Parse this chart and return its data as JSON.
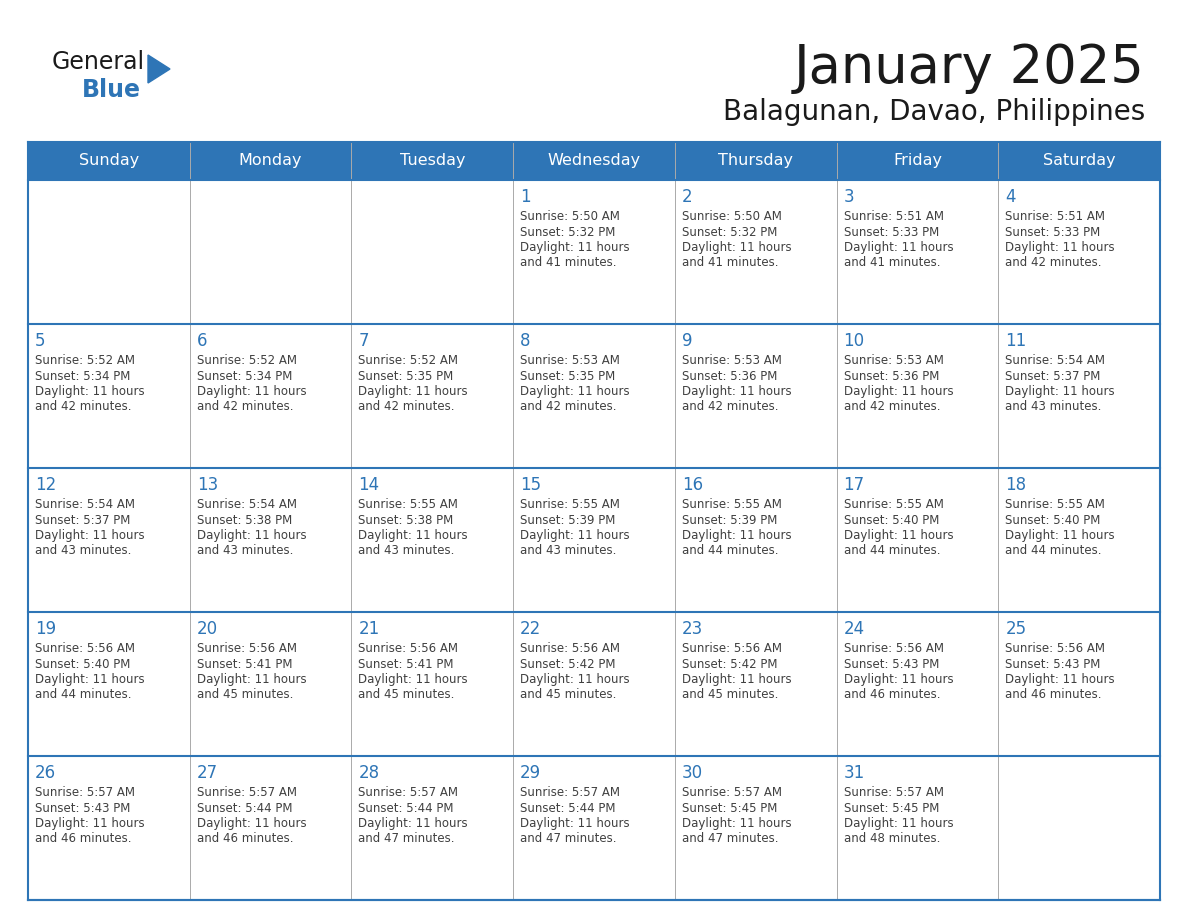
{
  "title": "January 2025",
  "subtitle": "Balagunan, Davao, Philippines",
  "header_bg": "#2E75B6",
  "header_text_color": "#FFFFFF",
  "cell_bg": "#FFFFFF",
  "border_color": "#2E75B6",
  "day_number_color": "#2E75B6",
  "cell_text_color": "#404040",
  "days_of_week": [
    "Sunday",
    "Monday",
    "Tuesday",
    "Wednesday",
    "Thursday",
    "Friday",
    "Saturday"
  ],
  "weeks": [
    [
      {
        "day": 0,
        "sunrise": "",
        "sunset": "",
        "daylight_min": ""
      },
      {
        "day": 0,
        "sunrise": "",
        "sunset": "",
        "daylight_min": ""
      },
      {
        "day": 0,
        "sunrise": "",
        "sunset": "",
        "daylight_min": ""
      },
      {
        "day": 1,
        "sunrise": "5:50 AM",
        "sunset": "5:32 PM",
        "daylight_min": "41"
      },
      {
        "day": 2,
        "sunrise": "5:50 AM",
        "sunset": "5:32 PM",
        "daylight_min": "41"
      },
      {
        "day": 3,
        "sunrise": "5:51 AM",
        "sunset": "5:33 PM",
        "daylight_min": "41"
      },
      {
        "day": 4,
        "sunrise": "5:51 AM",
        "sunset": "5:33 PM",
        "daylight_min": "42"
      }
    ],
    [
      {
        "day": 5,
        "sunrise": "5:52 AM",
        "sunset": "5:34 PM",
        "daylight_min": "42"
      },
      {
        "day": 6,
        "sunrise": "5:52 AM",
        "sunset": "5:34 PM",
        "daylight_min": "42"
      },
      {
        "day": 7,
        "sunrise": "5:52 AM",
        "sunset": "5:35 PM",
        "daylight_min": "42"
      },
      {
        "day": 8,
        "sunrise": "5:53 AM",
        "sunset": "5:35 PM",
        "daylight_min": "42"
      },
      {
        "day": 9,
        "sunrise": "5:53 AM",
        "sunset": "5:36 PM",
        "daylight_min": "42"
      },
      {
        "day": 10,
        "sunrise": "5:53 AM",
        "sunset": "5:36 PM",
        "daylight_min": "42"
      },
      {
        "day": 11,
        "sunrise": "5:54 AM",
        "sunset": "5:37 PM",
        "daylight_min": "43"
      }
    ],
    [
      {
        "day": 12,
        "sunrise": "5:54 AM",
        "sunset": "5:37 PM",
        "daylight_min": "43"
      },
      {
        "day": 13,
        "sunrise": "5:54 AM",
        "sunset": "5:38 PM",
        "daylight_min": "43"
      },
      {
        "day": 14,
        "sunrise": "5:55 AM",
        "sunset": "5:38 PM",
        "daylight_min": "43"
      },
      {
        "day": 15,
        "sunrise": "5:55 AM",
        "sunset": "5:39 PM",
        "daylight_min": "43"
      },
      {
        "day": 16,
        "sunrise": "5:55 AM",
        "sunset": "5:39 PM",
        "daylight_min": "44"
      },
      {
        "day": 17,
        "sunrise": "5:55 AM",
        "sunset": "5:40 PM",
        "daylight_min": "44"
      },
      {
        "day": 18,
        "sunrise": "5:55 AM",
        "sunset": "5:40 PM",
        "daylight_min": "44"
      }
    ],
    [
      {
        "day": 19,
        "sunrise": "5:56 AM",
        "sunset": "5:40 PM",
        "daylight_min": "44"
      },
      {
        "day": 20,
        "sunrise": "5:56 AM",
        "sunset": "5:41 PM",
        "daylight_min": "45"
      },
      {
        "day": 21,
        "sunrise": "5:56 AM",
        "sunset": "5:41 PM",
        "daylight_min": "45"
      },
      {
        "day": 22,
        "sunrise": "5:56 AM",
        "sunset": "5:42 PM",
        "daylight_min": "45"
      },
      {
        "day": 23,
        "sunrise": "5:56 AM",
        "sunset": "5:42 PM",
        "daylight_min": "45"
      },
      {
        "day": 24,
        "sunrise": "5:56 AM",
        "sunset": "5:43 PM",
        "daylight_min": "46"
      },
      {
        "day": 25,
        "sunrise": "5:56 AM",
        "sunset": "5:43 PM",
        "daylight_min": "46"
      }
    ],
    [
      {
        "day": 26,
        "sunrise": "5:57 AM",
        "sunset": "5:43 PM",
        "daylight_min": "46"
      },
      {
        "day": 27,
        "sunrise": "5:57 AM",
        "sunset": "5:44 PM",
        "daylight_min": "46"
      },
      {
        "day": 28,
        "sunrise": "5:57 AM",
        "sunset": "5:44 PM",
        "daylight_min": "47"
      },
      {
        "day": 29,
        "sunrise": "5:57 AM",
        "sunset": "5:44 PM",
        "daylight_min": "47"
      },
      {
        "day": 30,
        "sunrise": "5:57 AM",
        "sunset": "5:45 PM",
        "daylight_min": "47"
      },
      {
        "day": 31,
        "sunrise": "5:57 AM",
        "sunset": "5:45 PM",
        "daylight_min": "48"
      },
      {
        "day": 0,
        "sunrise": "",
        "sunset": "",
        "daylight_min": ""
      }
    ]
  ]
}
